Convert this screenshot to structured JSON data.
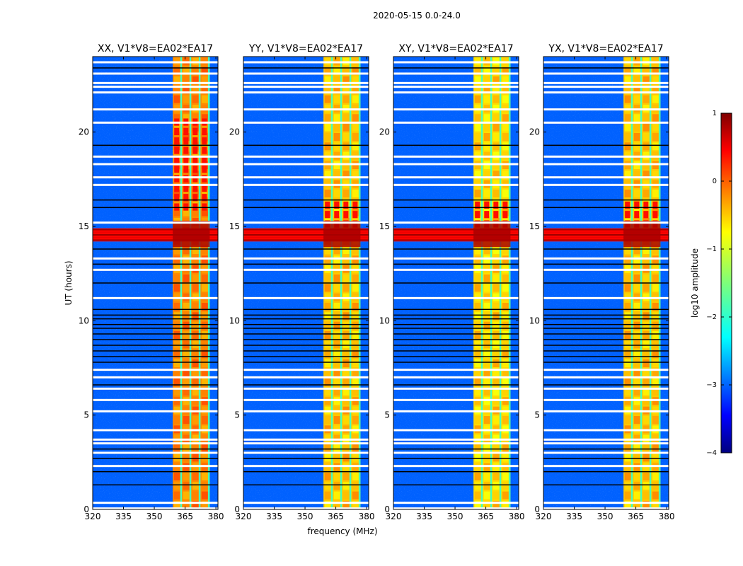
{
  "chart_data": {
    "type": "heatmap",
    "suptitle": "2020-05-15 0.0-24.0",
    "xlabel": "frequency (MHz)",
    "ylabel": "UT (hours)",
    "xlim": [
      320,
      381
    ],
    "ylim": [
      0,
      24
    ],
    "xticks": [
      320,
      335,
      350,
      365,
      380
    ],
    "yticks": [
      0,
      5,
      10,
      15,
      20
    ],
    "xtick_labels": [
      "320",
      "335",
      "350",
      "365",
      "380"
    ],
    "ytick_labels": [
      "0",
      "5",
      "10",
      "15",
      "20"
    ],
    "colormap": "jet",
    "colorbar": {
      "label": "log10 amplitude",
      "range": [
        -4,
        1
      ],
      "ticks": [
        1,
        0,
        -1,
        -2,
        -3,
        -4
      ],
      "tick_labels": [
        "1",
        "0",
        "−1",
        "−2",
        "−3",
        "−4"
      ]
    },
    "panels": [
      {
        "title": "XX, V1*V8=EA02*EA17",
        "band_mhz": [
          359,
          377
        ],
        "band_level": -0.3,
        "rfi_hours": [
          14.2,
          14.9
        ],
        "bright_hours": [
          15.8,
          20.5
        ]
      },
      {
        "title": "YY, V1*V8=EA02*EA17",
        "band_mhz": [
          359,
          377
        ],
        "band_level": -0.6,
        "rfi_hours": [
          14.2,
          14.9
        ],
        "bright_hours": [
          14.9,
          16.3
        ]
      },
      {
        "title": "XY, V1*V8=EA02*EA17",
        "band_mhz": [
          359,
          377
        ],
        "band_level": -0.7,
        "rfi_hours": [
          14.2,
          14.9
        ],
        "bright_hours": [
          14.9,
          16.3
        ]
      },
      {
        "title": "YX, V1*V8=EA02*EA17",
        "band_mhz": [
          359,
          377
        ],
        "band_level": -0.6,
        "rfi_hours": [
          14.2,
          14.9
        ],
        "bright_hours": [
          14.9,
          16.3
        ]
      }
    ],
    "background_level": -2.9,
    "flagged_hours_white": [
      0.05,
      0.35,
      2.3,
      3.0,
      3.5,
      3.7,
      4.2,
      5.2,
      5.8,
      6.4,
      7.0,
      7.4,
      11.2,
      12.7,
      13.3,
      15.2,
      17.2,
      17.6,
      18.3,
      18.7,
      20.5,
      21.2,
      22.1,
      22.4,
      22.6,
      23.1,
      23.7
    ],
    "flagged_hours_black": [
      1.3,
      2.0,
      2.7,
      3.2,
      6.6,
      7.8,
      8.1,
      8.4,
      8.7,
      9.0,
      9.3,
      9.6,
      9.8,
      10.1,
      10.3,
      10.6,
      12.0,
      13.0,
      13.8,
      16.0,
      16.4,
      19.3,
      23.4
    ]
  }
}
